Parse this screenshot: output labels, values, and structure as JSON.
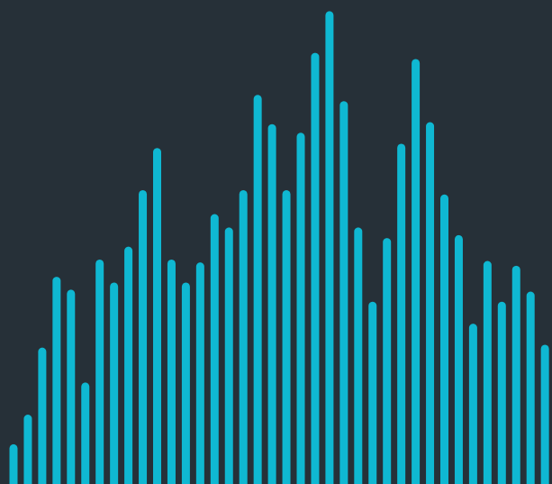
{
  "colors": {
    "background": "#263038",
    "bar": "#0fb8d2"
  },
  "chart_data": {
    "type": "bar",
    "title": "",
    "xlabel": "",
    "ylabel": "",
    "axes_visible": false,
    "grid": false,
    "legend": "none",
    "bar_style": "rounded-top",
    "ylim": [
      0,
      100
    ],
    "values": [
      8.3,
      14.5,
      28.5,
      43.3,
      40.6,
      21.2,
      46.9,
      42.1,
      49.6,
      61.4,
      70.2,
      46.9,
      42.1,
      46.3,
      56.4,
      53.6,
      61.4,
      81.3,
      75.2,
      61.4,
      73.4,
      90.1,
      98.8,
      80.0,
      53.6,
      38.1,
      51.4,
      71.1,
      88.8,
      75.6,
      60.5,
      52.0,
      33.5,
      46.6,
      38.1,
      45.6,
      40.2,
      29.1
    ]
  }
}
